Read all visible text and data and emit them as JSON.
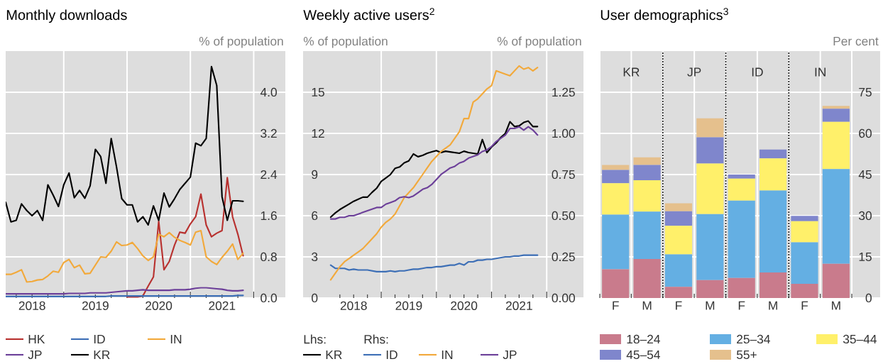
{
  "chart_data": [
    {
      "type": "line",
      "title": "Monthly downloads",
      "ylabel": "% of population",
      "x": [
        "2018-02",
        "2018-03",
        "2018-04",
        "2018-05",
        "2018-06",
        "2018-07",
        "2018-08",
        "2018-09",
        "2018-10",
        "2018-11",
        "2018-12",
        "2019-01",
        "2019-02",
        "2019-03",
        "2019-04",
        "2019-05",
        "2019-06",
        "2019-07",
        "2019-08",
        "2019-09",
        "2019-10",
        "2019-11",
        "2019-12",
        "2020-01",
        "2020-02",
        "2020-03",
        "2020-04",
        "2020-05",
        "2020-06",
        "2020-07",
        "2020-08",
        "2020-09",
        "2020-10",
        "2020-11",
        "2020-12",
        "2021-01",
        "2021-02",
        "2021-03",
        "2021-04",
        "2021-05",
        "2021-06",
        "2021-07",
        "2021-08",
        "2021-09",
        "2021-10",
        "2021-11"
      ],
      "xlim": [
        "2018-02",
        "2022-07"
      ],
      "xticks": [
        {
          "value": "2018-04",
          "label": null
        },
        {
          "value": "2018-07",
          "label": "2018"
        },
        {
          "value": "2018-10",
          "label": null
        },
        {
          "value": "2019-01",
          "label": null
        },
        {
          "value": "2019-04",
          "label": null
        },
        {
          "value": "2019-07",
          "label": "2019"
        },
        {
          "value": "2019-10",
          "label": null
        },
        {
          "value": "2020-01",
          "label": null
        },
        {
          "value": "2020-04",
          "label": null
        },
        {
          "value": "2020-07",
          "label": "2020"
        },
        {
          "value": "2020-10",
          "label": null
        },
        {
          "value": "2021-01",
          "label": null
        },
        {
          "value": "2021-04",
          "label": null
        },
        {
          "value": "2021-07",
          "label": "2021"
        },
        {
          "value": "2021-10",
          "label": null
        },
        {
          "value": "2022-01",
          "label": null
        }
      ],
      "ylim": [
        0,
        4.8
      ],
      "yticks": [
        {
          "value": 0,
          "label": "0.0"
        },
        0.8,
        1.6,
        2.4,
        3.2,
        {
          "value": 4,
          "label": "4.0"
        }
      ],
      "grid": true,
      "legend": "bottom",
      "series": [
        {
          "name": "HK",
          "color": "#b8312f",
          "values": [
            null,
            null,
            null,
            null,
            null,
            null,
            null,
            null,
            null,
            null,
            null,
            null,
            null,
            null,
            null,
            null,
            null,
            null,
            null,
            null,
            null,
            null,
            null,
            0.02,
            0.02,
            0.02,
            0.04,
            0.23,
            0.41,
            1.49,
            0.55,
            0.71,
            1.03,
            1.28,
            1.26,
            1.44,
            1.58,
            2.02,
            1.42,
            1.19,
            1.26,
            1.31,
            2.34,
            1.58,
            1.24,
            0.82
          ]
        },
        {
          "name": "ID",
          "color": "#3d6fb6",
          "values": [
            0.03,
            0.03,
            0.03,
            0.03,
            0.03,
            0.03,
            0.03,
            0.03,
            0.03,
            0.03,
            0.03,
            0.03,
            0.03,
            0.03,
            0.03,
            0.03,
            0.03,
            0.03,
            0.03,
            0.03,
            0.04,
            0.04,
            0.04,
            0.04,
            0.04,
            0.04,
            0.04,
            0.04,
            0.04,
            0.04,
            0.04,
            0.04,
            0.04,
            0.04,
            0.04,
            0.04,
            0.04,
            0.04,
            0.04,
            0.04,
            0.04,
            0.04,
            0.04,
            0.04,
            0.05,
            0.05
          ]
        },
        {
          "name": "IN",
          "color": "#f2a93b",
          "values": [
            0.46,
            0.46,
            0.5,
            0.55,
            0.31,
            0.32,
            0.35,
            0.36,
            0.43,
            0.52,
            0.5,
            0.69,
            0.75,
            0.59,
            0.64,
            0.47,
            0.48,
            0.64,
            0.8,
            0.79,
            0.91,
            1.09,
            1.02,
            1.03,
            1.08,
            0.96,
            0.82,
            0.73,
            0.8,
            1.24,
            1.19,
            1.27,
            1.18,
            1.12,
            1.08,
            1.03,
            1.28,
            1.31,
            0.8,
            0.71,
            0.65,
            0.79,
            0.91,
            1.05,
            0.75,
            0.87
          ]
        },
        {
          "name": "JP",
          "color": "#6c3f99",
          "values": [
            0.08,
            0.08,
            0.08,
            0.08,
            0.08,
            0.08,
            0.08,
            0.08,
            0.08,
            0.08,
            0.08,
            0.08,
            0.09,
            0.09,
            0.09,
            0.09,
            0.1,
            0.1,
            0.1,
            0.1,
            0.11,
            0.12,
            0.13,
            0.14,
            0.14,
            0.15,
            0.16,
            0.15,
            0.15,
            0.15,
            0.15,
            0.15,
            0.16,
            0.16,
            0.16,
            0.17,
            0.19,
            0.2,
            0.2,
            0.19,
            0.18,
            0.17,
            0.15,
            0.14,
            0.14,
            0.15
          ]
        },
        {
          "name": "KR",
          "color": "#000000",
          "values": [
            1.86,
            1.48,
            1.51,
            1.83,
            1.7,
            1.6,
            1.7,
            1.51,
            2.2,
            2.0,
            1.78,
            2.2,
            2.43,
            1.95,
            2.09,
            1.94,
            2.18,
            2.89,
            2.75,
            2.23,
            3.1,
            2.55,
            1.93,
            1.81,
            1.81,
            1.48,
            1.58,
            1.42,
            1.79,
            1.51,
            2.04,
            1.77,
            1.93,
            2.11,
            2.23,
            2.35,
            3.01,
            2.96,
            3.1,
            4.5,
            4.13,
            1.97,
            1.51,
            1.89,
            1.89,
            1.88
          ]
        }
      ]
    },
    {
      "type": "line",
      "title": "Weekly active users$^{2}$",
      "ylabel": "% of population",
      "y2label": "% of population",
      "annotations": [
        "Lhs:",
        "Rhs:"
      ],
      "x": [
        "2018-02",
        "2018-03",
        "2018-04",
        "2018-05",
        "2018-06",
        "2018-07",
        "2018-08",
        "2018-09",
        "2018-10",
        "2018-11",
        "2018-12",
        "2019-01",
        "2019-02",
        "2019-03",
        "2019-04",
        "2019-05",
        "2019-06",
        "2019-07",
        "2019-08",
        "2019-09",
        "2019-10",
        "2019-11",
        "2019-12",
        "2020-01",
        "2020-02",
        "2020-03",
        "2020-04",
        "2020-05",
        "2020-06",
        "2020-07",
        "2020-08",
        "2020-09",
        "2020-10",
        "2020-11",
        "2020-12",
        "2021-01",
        "2021-02",
        "2021-03",
        "2021-04",
        "2021-05",
        "2021-06",
        "2021-07",
        "2021-08",
        "2021-09",
        "2021-10",
        "2021-11"
      ],
      "xlim": [
        "2017-08",
        "2022-09"
      ],
      "xticks": [
        {
          "value": "2018-04",
          "label": null
        },
        {
          "value": "2018-07",
          "label": "2018"
        },
        {
          "value": "2018-10",
          "label": null
        },
        {
          "value": "2019-01",
          "label": null
        },
        {
          "value": "2019-04",
          "label": null
        },
        {
          "value": "2019-07",
          "label": "2019"
        },
        {
          "value": "2019-10",
          "label": null
        },
        {
          "value": "2020-01",
          "label": null
        },
        {
          "value": "2020-04",
          "label": null
        },
        {
          "value": "2020-07",
          "label": "2020"
        },
        {
          "value": "2020-10",
          "label": null
        },
        {
          "value": "2021-01",
          "label": null
        },
        {
          "value": "2021-04",
          "label": null
        },
        {
          "value": "2021-07",
          "label": "2021"
        },
        {
          "value": "2021-10",
          "label": null
        },
        {
          "value": "2022-01",
          "label": null
        }
      ],
      "ylim": [
        0,
        18
      ],
      "yticks": [
        0,
        3,
        6,
        9,
        12,
        15
      ],
      "y2lim": [
        0,
        1.5
      ],
      "y2ticks": [
        {
          "value": 0,
          "label": "0.00"
        },
        0.25,
        {
          "value": 0.5,
          "label": "0.50"
        },
        0.75,
        {
          "value": 1,
          "label": "1.00"
        },
        1.25
      ],
      "grid": true,
      "legend": "bottom",
      "series": [
        {
          "name": "KR",
          "color": "#000000",
          "values": [
            5.9,
            6.2,
            6.45,
            6.65,
            6.85,
            7.05,
            7.2,
            7.35,
            7.35,
            7.7,
            8.0,
            8.5,
            8.75,
            9.0,
            9.45,
            9.55,
            9.85,
            10.0,
            10.5,
            10.3,
            10.4,
            10.55,
            10.65,
            10.75,
            10.6,
            10.7,
            10.65,
            10.6,
            10.55,
            10.7,
            10.6,
            10.55,
            10.5,
            11.55,
            10.6,
            11.0,
            11.3,
            11.7,
            12.0,
            12.85,
            12.5,
            12.55,
            12.8,
            12.9,
            12.5,
            12.5
          ]
        },
        {
          "name": "ID",
          "color": "#3d6fb6",
          "axis": "y2",
          "values": [
            0.2,
            0.18,
            0.18,
            0.18,
            0.17,
            0.175,
            0.17,
            0.17,
            0.17,
            0.165,
            0.16,
            0.16,
            0.16,
            0.165,
            0.16,
            0.165,
            0.165,
            0.17,
            0.175,
            0.175,
            0.18,
            0.185,
            0.185,
            0.19,
            0.19,
            0.195,
            0.2,
            0.2,
            0.21,
            0.2,
            0.22,
            0.22,
            0.23,
            0.23,
            0.235,
            0.235,
            0.24,
            0.245,
            0.25,
            0.25,
            0.255,
            0.255,
            0.26,
            0.26,
            0.26,
            0.26
          ]
        },
        {
          "name": "IN",
          "color": "#f2a93b",
          "axis": "y2",
          "values": [
            0.11,
            0.15,
            0.19,
            0.22,
            0.24,
            0.26,
            0.28,
            0.3,
            0.33,
            0.36,
            0.39,
            0.43,
            0.46,
            0.48,
            0.51,
            0.56,
            0.61,
            0.64,
            0.67,
            0.71,
            0.75,
            0.79,
            0.83,
            0.86,
            0.89,
            0.91,
            0.93,
            0.97,
            1.01,
            1.09,
            1.09,
            1.19,
            1.21,
            1.24,
            1.27,
            1.29,
            1.38,
            1.37,
            1.36,
            1.35,
            1.38,
            1.41,
            1.39,
            1.4,
            1.38,
            1.4
          ]
        },
        {
          "name": "JP",
          "color": "#6c3f99",
          "axis": "y2",
          "values": [
            0.48,
            0.48,
            0.49,
            0.49,
            0.5,
            0.5,
            0.51,
            0.52,
            0.53,
            0.54,
            0.55,
            0.55,
            0.57,
            0.58,
            0.59,
            0.61,
            0.615,
            0.61,
            0.62,
            0.64,
            0.66,
            0.67,
            0.69,
            0.72,
            0.75,
            0.77,
            0.79,
            0.8,
            0.82,
            0.83,
            0.85,
            0.86,
            0.87,
            0.89,
            0.9,
            0.92,
            0.95,
            0.97,
            0.99,
            1.03,
            1.03,
            1.04,
            1.02,
            1.04,
            1.02,
            0.99
          ]
        }
      ]
    },
    {
      "type": "bar",
      "stacked": true,
      "title": "User demographics$^{3}$",
      "ylabel": "Per cent",
      "categories": [
        "F",
        "M",
        "F",
        "M",
        "F",
        "M",
        "F",
        "M"
      ],
      "annotations": [
        "KR",
        "JP",
        "ID",
        "IN"
      ],
      "ylim": [
        0,
        90
      ],
      "yticks": [
        0,
        15,
        30,
        45,
        60,
        75
      ],
      "grid": true,
      "legend": "bottom",
      "series": [
        {
          "name": "18–24",
          "color": "#c97b8c",
          "values": [
            10.5,
            14.2,
            4.1,
            6.5,
            7.3,
            9.3,
            5.2,
            12.5
          ]
        },
        {
          "name": "25–34",
          "color": "#64afe3",
          "values": [
            19.9,
            17.3,
            11.8,
            24.1,
            28.2,
            29.9,
            15.1,
            34.5
          ]
        },
        {
          "name": "35–44",
          "color": "#fff06a",
          "values": [
            11.4,
            11.4,
            10.4,
            18.4,
            8.0,
            11.7,
            7.7,
            17.2
          ]
        },
        {
          "name": "45–54",
          "color": "#7f86cc",
          "values": [
            4.9,
            5.6,
            5.3,
            9.6,
            1.5,
            3.2,
            1.9,
            4.8
          ]
        },
        {
          "name": "55+",
          "color": "#e5c08d",
          "values": [
            1.8,
            2.8,
            2.9,
            6.9,
            null,
            null,
            null,
            1.0
          ]
        }
      ]
    }
  ]
}
